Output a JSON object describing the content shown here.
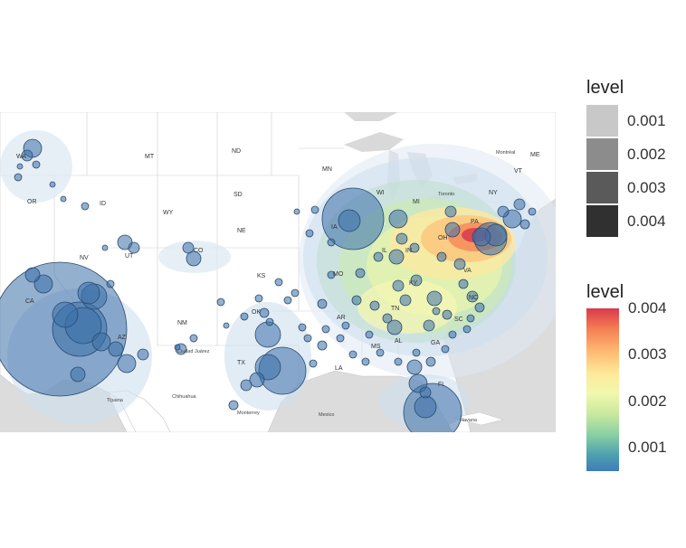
{
  "map": {
    "state_labels": [
      "WA",
      "MT",
      "ND",
      "SD",
      "WY",
      "NE",
      "UT",
      "NV",
      "CA",
      "CO",
      "KS",
      "OK",
      "TX",
      "NM",
      "AZ",
      "ID",
      "OR",
      "WI",
      "MI",
      "IL",
      "IN",
      "OH",
      "PA",
      "NY",
      "VT",
      "ME",
      "MO",
      "AR",
      "LA",
      "MS",
      "AL",
      "GA",
      "FL",
      "TN",
      "KY",
      "VA",
      "NC",
      "SC",
      "IA",
      "MN"
    ],
    "city_labels": [
      "Montréal",
      "Toronto",
      "Chihuahua",
      "Monterrey",
      "Havana",
      "Ciudad Juárez",
      "Tijuana",
      "Mexico"
    ],
    "colors": {
      "bubble_fill": "#3b6fa8",
      "bubble_stroke": "#2a4a70",
      "land": "#ffffff",
      "water": "#d9d9d9"
    }
  },
  "legend_density": {
    "title": "level",
    "items": [
      {
        "label": "0.001",
        "color": "#c8c8c8"
      },
      {
        "label": "0.002",
        "color": "#8c8c8c"
      },
      {
        "label": "0.003",
        "color": "#5a5a5a"
      },
      {
        "label": "0.004",
        "color": "#303030"
      }
    ]
  },
  "legend_color": {
    "title": "level",
    "ticks": [
      "0.004",
      "0.003",
      "0.002",
      "0.001"
    ],
    "tick_values": [
      0.004,
      0.003,
      0.002,
      0.001
    ],
    "range": [
      0.0005,
      0.004
    ]
  }
}
